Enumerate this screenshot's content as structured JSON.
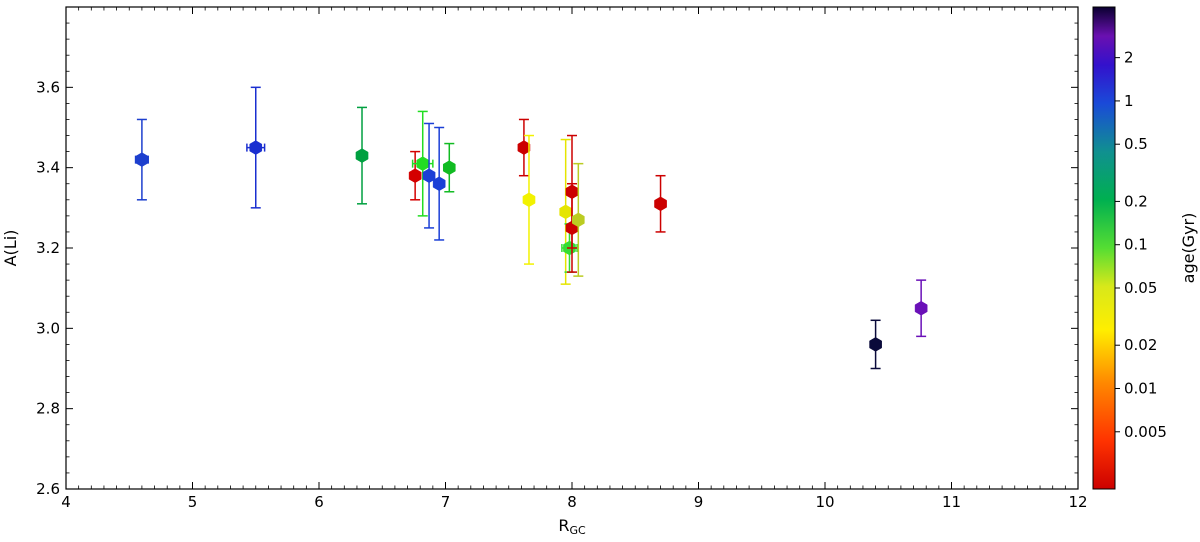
{
  "chart_data": {
    "type": "scatter",
    "xlabel_main": "R",
    "xlabel_sub": "GC",
    "ylabel": "A(Li)",
    "xlim": [
      4,
      12
    ],
    "ylim": [
      2.6,
      3.8
    ],
    "x_ticks": [
      4,
      5,
      6,
      7,
      8,
      9,
      10,
      11,
      12
    ],
    "x_tick_labels": [
      "4",
      "5",
      "6",
      "7",
      "8",
      "9",
      "10",
      "11",
      "12"
    ],
    "y_ticks": [
      2.6,
      2.8,
      3.0,
      3.2,
      3.4,
      3.6
    ],
    "y_tick_labels": [
      "2.6",
      "2.8",
      "3.0",
      "3.2",
      "3.4",
      "3.6"
    ],
    "grid": false,
    "colorbar": {
      "label": "age(Gyr)",
      "scale": "log",
      "range": [
        0.002,
        4.5
      ],
      "ticks": [
        0.005,
        0.01,
        0.02,
        0.05,
        0.1,
        0.2,
        0.5,
        1,
        2
      ],
      "tick_labels": [
        "0.005",
        "0.01",
        "0.02",
        "0.05",
        "0.1",
        "0.2",
        "0.5",
        "1",
        "2"
      ]
    },
    "points": [
      {
        "x": 4.6,
        "y": 3.42,
        "yerr_low": 0.1,
        "yerr_high": 0.1,
        "xerr": 0.05,
        "age": 1.2,
        "color": "#1d3fce"
      },
      {
        "x": 5.5,
        "y": 3.45,
        "yerr_low": 0.15,
        "yerr_high": 0.15,
        "xerr": 0.07,
        "age": 1.5,
        "color": "#1a2fd0"
      },
      {
        "x": 6.34,
        "y": 3.43,
        "yerr_low": 0.12,
        "yerr_high": 0.12,
        "xerr": 0,
        "age": 0.3,
        "color": "#00a040"
      },
      {
        "x": 6.76,
        "y": 3.38,
        "yerr_low": 0.06,
        "yerr_high": 0.06,
        "xerr": 0,
        "age": 0.003,
        "color": "#d40000"
      },
      {
        "x": 6.82,
        "y": 3.41,
        "yerr_low": 0.13,
        "yerr_high": 0.13,
        "xerr": 0.08,
        "age": 0.1,
        "color": "#22dd22"
      },
      {
        "x": 6.87,
        "y": 3.38,
        "yerr_low": 0.13,
        "yerr_high": 0.13,
        "xerr": 0,
        "age": 1.0,
        "color": "#1b3fd6"
      },
      {
        "x": 6.95,
        "y": 3.36,
        "yerr_low": 0.14,
        "yerr_high": 0.14,
        "xerr": 0,
        "age": 1.0,
        "color": "#1b3fd6"
      },
      {
        "x": 7.03,
        "y": 3.4,
        "yerr_low": 0.06,
        "yerr_high": 0.06,
        "xerr": 0,
        "age": 0.15,
        "color": "#11bb22"
      },
      {
        "x": 7.62,
        "y": 3.45,
        "yerr_low": 0.07,
        "yerr_high": 0.07,
        "xerr": 0,
        "age": 0.003,
        "color": "#cc0000"
      },
      {
        "x": 7.66,
        "y": 3.32,
        "yerr_low": 0.16,
        "yerr_high": 0.16,
        "xerr": 0,
        "age": 0.02,
        "color": "#f2f200"
      },
      {
        "x": 7.95,
        "y": 3.29,
        "yerr_low": 0.18,
        "yerr_high": 0.18,
        "xerr": 0,
        "age": 0.02,
        "color": "#e5e500"
      },
      {
        "x": 7.98,
        "y": 3.2,
        "yerr_low": 0.06,
        "yerr_high": 0.06,
        "xerr": 0.06,
        "age": 0.1,
        "color": "#33dd33"
      },
      {
        "x": 8.0,
        "y": 3.34,
        "yerr_low": 0.14,
        "yerr_high": 0.14,
        "xerr": 0,
        "age": 0.003,
        "color": "#cc0000"
      },
      {
        "x": 8.0,
        "y": 3.25,
        "yerr_low": 0.11,
        "yerr_high": 0.11,
        "xerr": 0,
        "age": 0.003,
        "color": "#cc0000"
      },
      {
        "x": 8.05,
        "y": 3.27,
        "yerr_low": 0.14,
        "yerr_high": 0.14,
        "xerr": 0,
        "age": 0.04,
        "color": "#bbcc22"
      },
      {
        "x": 8.7,
        "y": 3.31,
        "yerr_low": 0.07,
        "yerr_high": 0.07,
        "xerr": 0,
        "age": 0.003,
        "color": "#cc0000"
      },
      {
        "x": 10.4,
        "y": 2.96,
        "yerr_low": 0.06,
        "yerr_high": 0.06,
        "xerr": 0,
        "age": 4.2,
        "color": "#0a0a3a"
      },
      {
        "x": 10.76,
        "y": 3.05,
        "yerr_low": 0.07,
        "yerr_high": 0.07,
        "xerr": 0,
        "age": 2.8,
        "color": "#6a10b8"
      }
    ]
  }
}
